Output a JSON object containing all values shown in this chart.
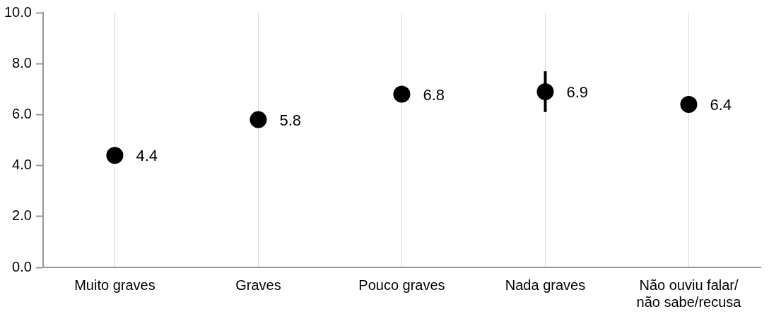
{
  "chart_data": {
    "type": "scatter",
    "categories": [
      "Muito graves",
      "Graves",
      "Pouco graves",
      "Nada graves",
      "Não ouviu falar/não sabe/recusa"
    ],
    "values": [
      4.4,
      5.8,
      6.8,
      6.9,
      6.4
    ],
    "errors": [
      null,
      null,
      null,
      [
        6.1,
        7.7
      ],
      null
    ],
    "color": "#000000",
    "marker": "circle",
    "data_labels": true,
    "ylim": [
      0,
      10
    ],
    "yticks": [
      {
        "value": 0,
        "label": "0.0"
      },
      {
        "value": 2,
        "label": "2.0"
      },
      {
        "value": 4,
        "label": "4.0"
      },
      {
        "value": 6,
        "label": "6.0"
      },
      {
        "value": 8,
        "label": "8.0"
      },
      {
        "value": 10,
        "label": "10.0"
      }
    ],
    "grid": "x"
  }
}
